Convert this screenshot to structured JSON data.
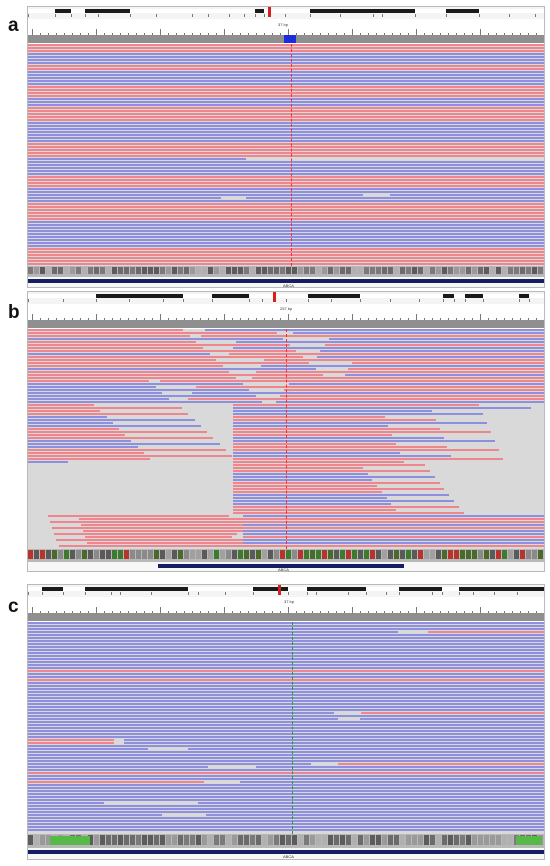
{
  "panels": [
    {
      "label": "a",
      "locus_span": "37 bp",
      "gene": "ABCA"
    },
    {
      "label": "b",
      "locus_span": "257 bp",
      "gene": "ABCA"
    },
    {
      "label": "c",
      "locus_span": "37 bp",
      "gene": "ABCA"
    }
  ],
  "colors": {
    "forward_read": "#f0868d",
    "reverse_read": "#8f8fdf",
    "empty": "#d9d9d9",
    "coverage": "#8f8f8f",
    "center_line_red": "#ff2a2a",
    "center_line_green": "#1e9c2e",
    "gene": "#151d63"
  }
}
